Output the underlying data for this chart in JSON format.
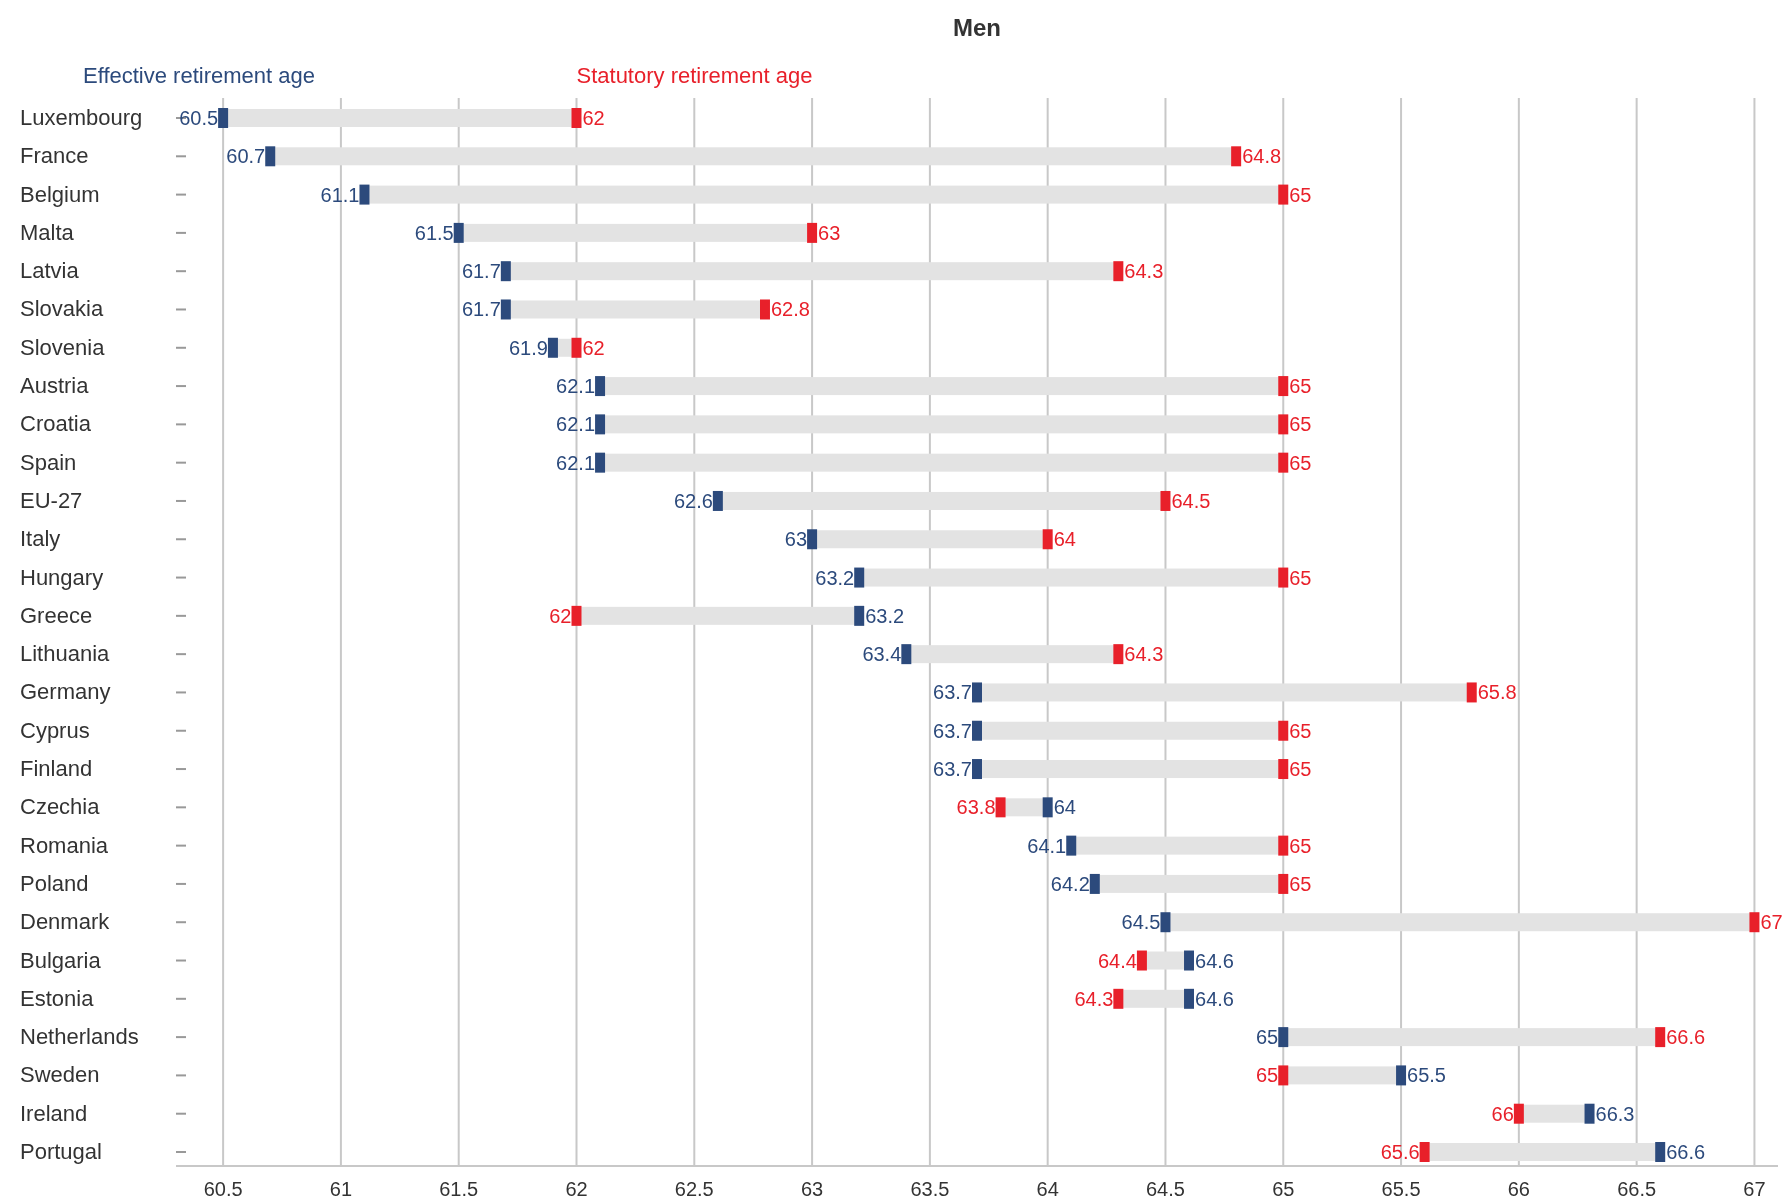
{
  "chart_data": {
    "type": "scatter",
    "title": "Men",
    "orientation": "horizontal",
    "marker": "square",
    "grid": "x",
    "data_labels": true,
    "categories": [
      "Luxembourg",
      "France",
      "Belgium",
      "Malta",
      "Latvia",
      "Slovakia",
      "Slovenia",
      "Austria",
      "Croatia",
      "Spain",
      "EU-27",
      "Italy",
      "Hungary",
      "Greece",
      "Lithuania",
      "Germany",
      "Cyprus",
      "Finland",
      "Czechia",
      "Romania",
      "Poland",
      "Denmark",
      "Bulgaria",
      "Estonia",
      "Netherlands",
      "Sweden",
      "Ireland",
      "Portugal"
    ],
    "series": [
      {
        "name": "Effective retirement age",
        "color": "#2c4a7c",
        "values": [
          60.5,
          60.7,
          61.1,
          61.5,
          61.7,
          61.7,
          61.9,
          62.1,
          62.1,
          62.1,
          62.6,
          63,
          63.2,
          63.2,
          63.4,
          63.7,
          63.7,
          63.7,
          64,
          64.1,
          64.2,
          64.5,
          64.6,
          64.6,
          65,
          65.5,
          66.3,
          66.6
        ]
      },
      {
        "name": "Statutory retirement age",
        "color": "#e8202a",
        "values": [
          62,
          64.8,
          65,
          63,
          64.3,
          62.8,
          62,
          65,
          65,
          65,
          64.5,
          64,
          65,
          62,
          64.3,
          65.8,
          65,
          65,
          63.8,
          65,
          65,
          67,
          64.4,
          64.3,
          66.6,
          65,
          66,
          65.6
        ]
      }
    ],
    "xlim": [
      60.3,
      67.1
    ],
    "xticks": [
      60.5,
      61,
      61.5,
      62,
      62.5,
      63,
      63.5,
      64,
      64.5,
      65,
      65.5,
      66,
      66.5,
      67
    ]
  }
}
